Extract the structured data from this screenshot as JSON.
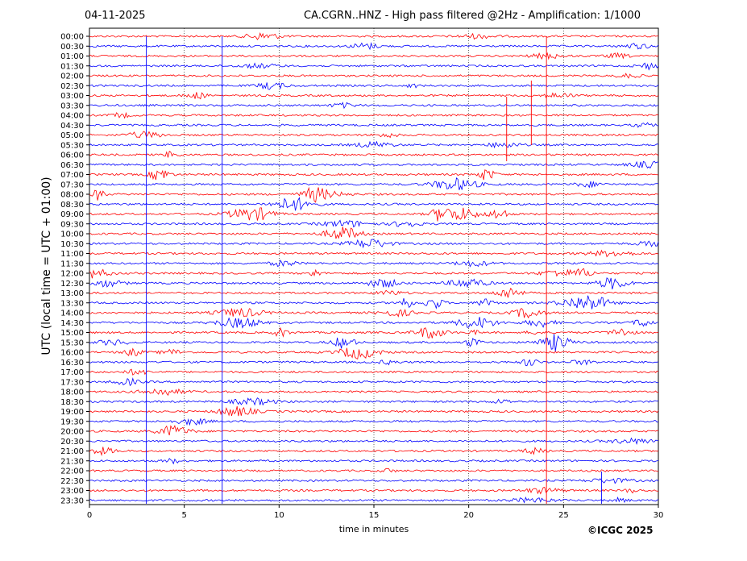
{
  "header": {
    "date": "04-11-2025",
    "title": "CA.CGRN..HNZ - High pass filtered @2Hz - Amplification: 1/1000"
  },
  "footer": {
    "copyright": "©ICGC 2025"
  },
  "chart_data": {
    "type": "line",
    "xlabel": "time in minutes",
    "ylabel": "UTC (local time = UTC + 01:00)",
    "xlim": [
      0,
      30
    ],
    "x_ticks": [
      "0",
      "5",
      "10",
      "15",
      "20",
      "25",
      "30"
    ],
    "rows": [
      "00:00",
      "00:30",
      "01:00",
      "01:30",
      "02:00",
      "02:30",
      "03:00",
      "03:30",
      "04:00",
      "04:30",
      "05:00",
      "05:30",
      "06:00",
      "06:30",
      "07:00",
      "07:30",
      "08:00",
      "08:30",
      "09:00",
      "09:30",
      "10:00",
      "10:30",
      "11:00",
      "11:30",
      "12:00",
      "12:30",
      "13:00",
      "13:30",
      "14:00",
      "14:30",
      "15:00",
      "15:30",
      "16:00",
      "16:30",
      "17:00",
      "17:30",
      "18:00",
      "18:30",
      "19:00",
      "19:30",
      "20:00",
      "20:30",
      "21:00",
      "21:30",
      "22:00",
      "22:30",
      "23:00",
      "23:30"
    ],
    "series_colors": [
      "#ff0000",
      "#0000ff"
    ],
    "grid": "vertical dotted"
  }
}
